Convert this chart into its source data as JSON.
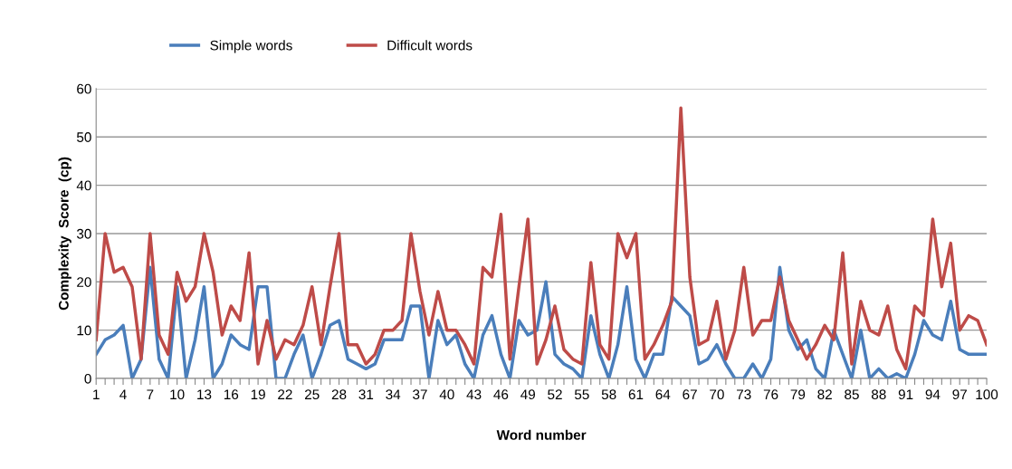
{
  "chart_data": {
    "type": "line",
    "xlabel": "Word number",
    "ylabel": "Complexity  Score  (cp)",
    "categories": [
      "1",
      null,
      null,
      "4",
      null,
      null,
      "7",
      null,
      null,
      "10",
      null,
      null,
      "13",
      null,
      null,
      "16",
      null,
      null,
      "19",
      null,
      null,
      "22",
      null,
      null,
      "25",
      null,
      null,
      "28",
      null,
      null,
      "31",
      null,
      null,
      "34",
      null,
      null,
      "37",
      null,
      null,
      "40",
      null,
      null,
      "43",
      null,
      null,
      "46",
      null,
      null,
      "49",
      null,
      null,
      "52",
      null,
      null,
      "55",
      null,
      null,
      "58",
      null,
      null,
      "61",
      null,
      null,
      "64",
      null,
      null,
      "67",
      null,
      null,
      "70",
      null,
      null,
      "73",
      null,
      null,
      "76",
      null,
      null,
      "79",
      null,
      null,
      "82",
      null,
      null,
      "85",
      null,
      null,
      "88",
      null,
      null,
      "91",
      null,
      null,
      "94",
      null,
      null,
      "97",
      null,
      null,
      "100"
    ],
    "series": [
      {
        "name": "Simple words",
        "color": "#4a7ebb",
        "values": [
          5,
          8,
          9,
          11,
          0,
          4,
          23,
          4,
          0,
          19,
          0,
          8,
          19,
          0,
          3,
          9,
          7,
          6,
          19,
          19,
          0,
          0,
          5,
          9,
          0,
          5,
          11,
          12,
          4,
          3,
          2,
          3,
          8,
          8,
          8,
          15,
          15,
          0,
          12,
          7,
          9,
          3,
          0,
          9,
          13,
          5,
          0,
          12,
          9,
          10,
          20,
          5,
          3,
          2,
          0,
          13,
          5,
          0,
          7,
          19,
          4,
          0,
          5,
          5,
          17,
          15,
          13,
          3,
          4,
          7,
          3,
          0,
          0,
          3,
          0,
          4,
          23,
          10,
          6,
          8,
          2,
          0,
          10,
          5,
          0,
          10,
          0,
          2,
          0,
          1,
          0,
          5,
          12,
          9,
          8,
          16,
          6,
          5,
          5,
          5
        ]
      },
      {
        "name": "Difficult words",
        "color": "#be4b48",
        "values": [
          8,
          30,
          22,
          23,
          19,
          4,
          30,
          9,
          5,
          22,
          16,
          19,
          30,
          22,
          9,
          15,
          12,
          26,
          3,
          12,
          4,
          8,
          7,
          11,
          19,
          7,
          19,
          30,
          7,
          7,
          3,
          5,
          10,
          10,
          12,
          30,
          18,
          9,
          18,
          10,
          10,
          7,
          3,
          23,
          21,
          34,
          4,
          19,
          33,
          3,
          8,
          15,
          6,
          4,
          3,
          24,
          7,
          4,
          30,
          25,
          30,
          4,
          7,
          11,
          16,
          56,
          21,
          7,
          8,
          16,
          4,
          10,
          23,
          9,
          12,
          12,
          21,
          12,
          8,
          4,
          7,
          11,
          8,
          26,
          3,
          16,
          10,
          9,
          15,
          6,
          2,
          15,
          13,
          33,
          19,
          28,
          10,
          13,
          12,
          7
        ]
      }
    ],
    "ylim": [
      0,
      60
    ],
    "yticks": [
      0,
      10,
      20,
      30,
      40,
      50,
      60
    ],
    "grid": "y",
    "legend": "top",
    "marker": "none",
    "line_style": "solid"
  }
}
